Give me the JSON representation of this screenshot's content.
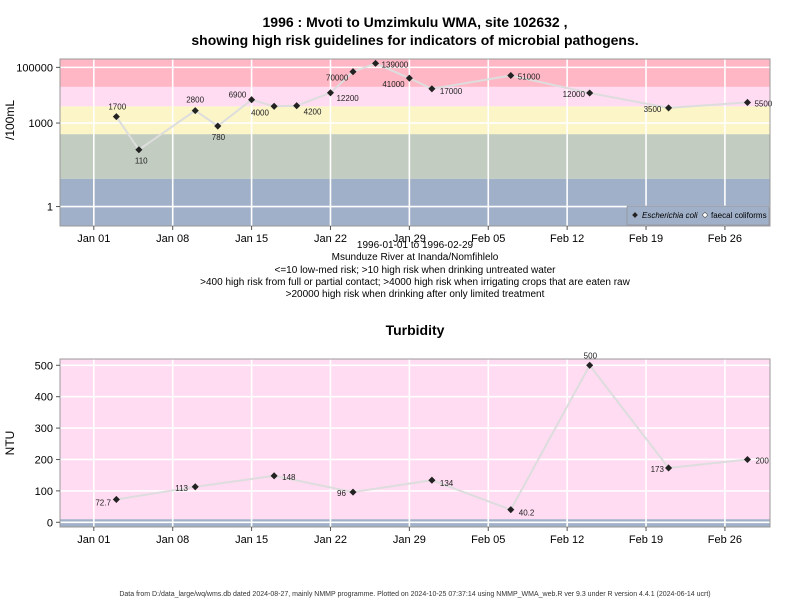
{
  "chart_data": [
    {
      "type": "line",
      "title": "1996 : Mvoti to Umzimkulu WMA, site 102632 ,",
      "subtitle": "showing high risk guidelines for indicators of microbial pathogens.",
      "ylabel": "/100mL",
      "yscale": "log",
      "ylim": [
        0.2,
        200000
      ],
      "xlim": [
        "1995-12-29",
        "1996-03-01"
      ],
      "yticks": [
        1,
        1000,
        100000
      ],
      "ytick_labels": [
        "1",
        "1000",
        "100000"
      ],
      "xticks": [
        "1996-01-01",
        "1996-01-08",
        "1996-01-15",
        "1996-01-22",
        "1996-01-29",
        "1996-02-05",
        "1996-02-12",
        "1996-02-19",
        "1996-02-26"
      ],
      "xtick_labels": [
        "Jan 01",
        "Jan 08",
        "Jan 15",
        "Jan 22",
        "Jan 29",
        "Feb 05",
        "Feb 12",
        "Feb 19",
        "Feb 26"
      ],
      "grid": true,
      "bands": [
        {
          "from": 0.2,
          "to": 10,
          "color": "#a0b0c8"
        },
        {
          "from": 10,
          "to": 400,
          "color": "#c2ccc0"
        },
        {
          "from": 400,
          "to": 4000,
          "color": "#fbf5c8"
        },
        {
          "from": 4000,
          "to": 20000,
          "color": "#ffdcf2"
        },
        {
          "from": 20000,
          "to": 200000,
          "color": "#ffb6c5"
        }
      ],
      "series": [
        {
          "name": "Escherichia coli",
          "x": [
            "1996-01-03",
            "1996-01-05",
            "1996-01-10",
            "1996-01-12",
            "1996-01-15",
            "1996-01-17",
            "1996-01-19",
            "1996-01-22",
            "1996-01-24",
            "1996-01-26",
            "1996-01-29",
            "1996-01-31",
            "1996-02-07",
            "1996-02-14",
            "1996-02-21",
            "1996-02-28"
          ],
          "values": [
            1700,
            110,
            2800,
            780,
            6900,
            4000,
            4200,
            12200,
            70000,
            139000,
            41000,
            17000,
            51000,
            12000,
            3500,
            5500
          ],
          "labels": [
            "1700",
            "110",
            "2800",
            "780",
            "6900",
            "4000",
            "4200",
            "12200",
            "70000",
            "139000",
            "41000",
            "17000",
            "51000",
            "12000",
            "3500",
            "5500"
          ],
          "color": "#222222",
          "line_color": "#dddddd"
        },
        {
          "name": "faecal coliforms",
          "x": [],
          "values": [],
          "color": "#ffffff"
        }
      ],
      "legend_placement": "bottom-right",
      "notes": [
        "1996-01-01 to 1996-02-29",
        "Msunduze River at Inanda/Nomfihlelo",
        "<=10 low-med risk; >10 high risk when drinking untreated water",
        ">400 high risk from full or partial contact; >4000 high risk when irrigating crops that are eaten raw",
        ">20000 high risk when drinking after only limited treatment"
      ]
    },
    {
      "type": "line",
      "title": "Turbidity",
      "ylabel": "NTU",
      "yscale": "linear",
      "ylim": [
        -15,
        520
      ],
      "xlim": [
        "1995-12-29",
        "1996-03-01"
      ],
      "yticks": [
        0,
        100,
        200,
        300,
        400,
        500
      ],
      "ytick_labels": [
        "0",
        "100",
        "200",
        "300",
        "400",
        "500"
      ],
      "xticks": [
        "1996-01-01",
        "1996-01-08",
        "1996-01-15",
        "1996-01-22",
        "1996-01-29",
        "1996-02-05",
        "1996-02-12",
        "1996-02-19",
        "1996-02-26"
      ],
      "xtick_labels": [
        "Jan 01",
        "Jan 08",
        "Jan 15",
        "Jan 22",
        "Jan 29",
        "Feb 05",
        "Feb 12",
        "Feb 19",
        "Feb 26"
      ],
      "grid": true,
      "bands": [
        {
          "from": -15,
          "to": 10,
          "color": "#a0b0c8"
        },
        {
          "from": 10,
          "to": 520,
          "color": "#ffdcf2"
        }
      ],
      "series": [
        {
          "name": "",
          "x": [
            "1996-01-03",
            "1996-01-10",
            "1996-01-17",
            "1996-01-24",
            "1996-01-31",
            "1996-02-07",
            "1996-02-14",
            "1996-02-21",
            "1996-02-28"
          ],
          "values": [
            72.7,
            113,
            148,
            96,
            134,
            40.2,
            500,
            173,
            200
          ],
          "labels": [
            "72.7",
            "113",
            "148",
            "96",
            "134",
            "40.2",
            "500",
            "173",
            "200"
          ],
          "color": "#222222",
          "line_color": "#dddddd"
        }
      ]
    }
  ],
  "footer": "Data from D:/data_large/wq/wms.db dated 2024-08-27, mainly NMMP programme. Plotted on 2024-10-25 07:37:14 using NMMP_WMA_web.R ver 9.3 under R version 4.4.1 (2024-06-14 ucrt)"
}
